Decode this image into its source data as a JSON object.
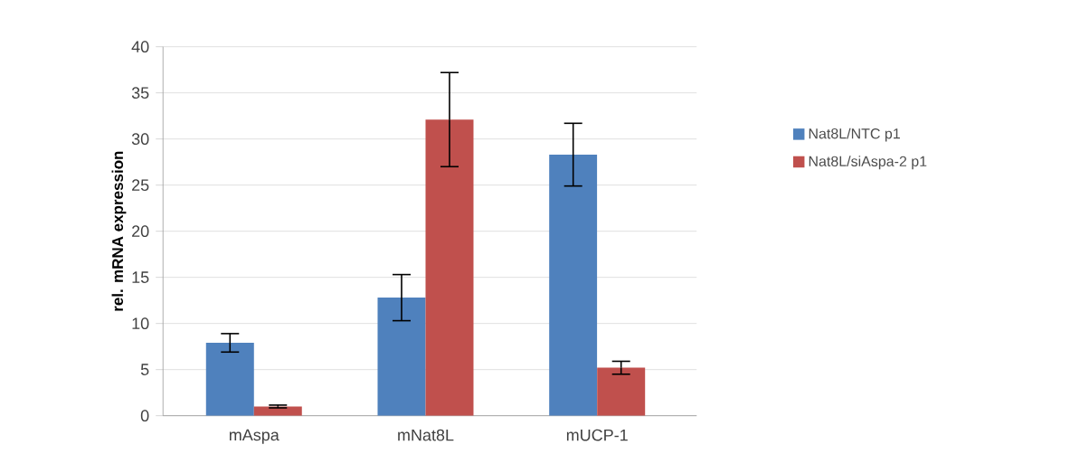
{
  "chart_data": {
    "type": "bar",
    "ylabel": "rel. mRNA expression",
    "categories": [
      "mAspa",
      "mNat8L",
      "mUCP-1"
    ],
    "series": [
      {
        "name": "Nat8L/NTC p1",
        "color": "#4f81bd",
        "values": [
          7.9,
          12.8,
          28.3
        ],
        "errors": [
          1.0,
          2.5,
          3.4
        ]
      },
      {
        "name": "Nat8L/siAspa-2 p1",
        "color": "#c0504d",
        "values": [
          1.0,
          32.1,
          5.2
        ],
        "errors": [
          0.15,
          5.1,
          0.7
        ]
      }
    ],
    "ylim": [
      0,
      40
    ],
    "yticks": [
      0,
      5,
      10,
      15,
      20,
      25,
      30,
      35,
      40
    ],
    "grid": "y",
    "legend": "right"
  }
}
